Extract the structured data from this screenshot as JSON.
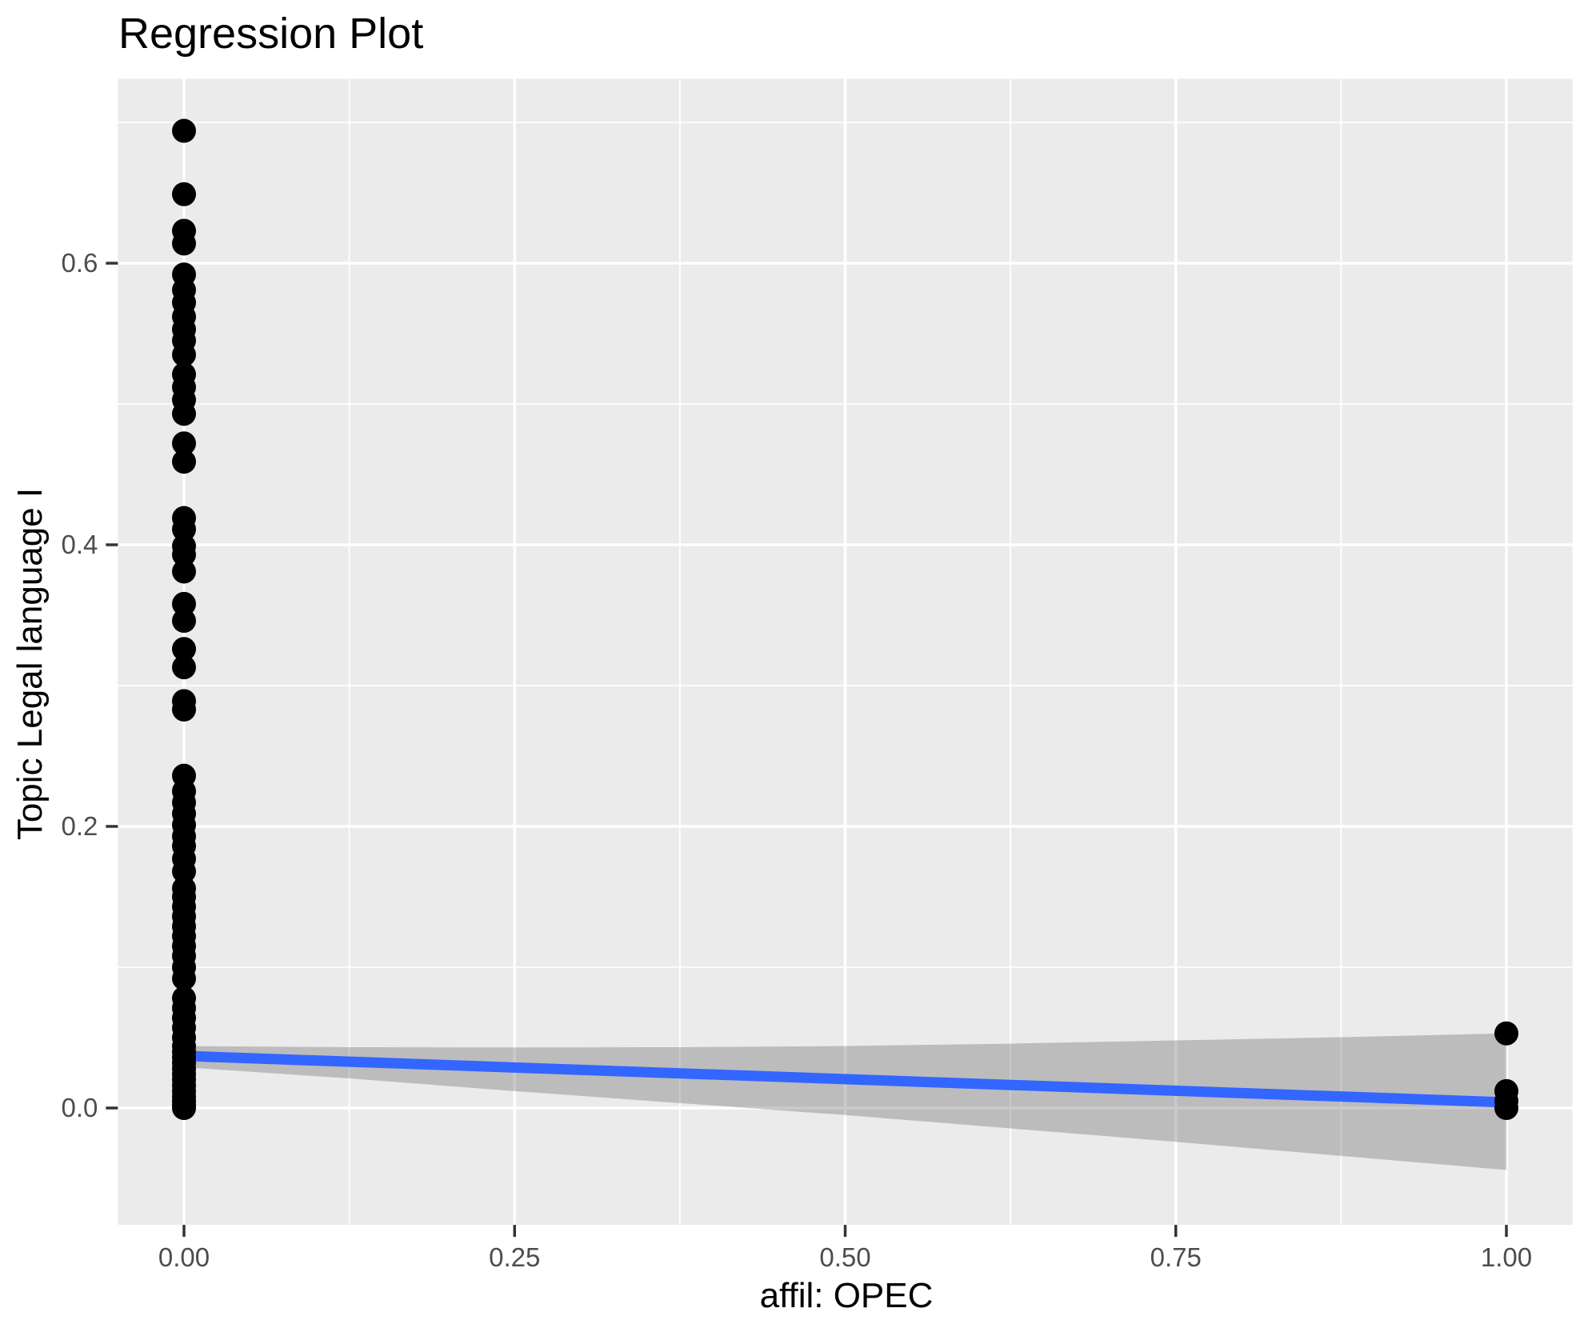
{
  "chart_data": {
    "type": "scatter",
    "title": "Regression Plot",
    "xlabel": "affil: OPEC",
    "ylabel": "Topic Legal language I",
    "legend": "none",
    "grid": "on",
    "panel_background": "#EBEBEB",
    "grid_color": "#FFFFFF",
    "point_color": "#000000",
    "line_color": "#3366FF",
    "ribbon_color": "rgba(90,90,90,0.32)",
    "tick_text_color": "#4D4D4D",
    "tick_mark_color": "#333333",
    "title_color": "#000000",
    "xlim": [
      -0.05,
      1.05
    ],
    "ylim": [
      -0.083,
      0.731
    ],
    "x_axis": {
      "title": "affil: OPEC",
      "ticks": [
        {
          "v": 0.0,
          "label": "0.00"
        },
        {
          "v": 0.25,
          "label": "0.25"
        },
        {
          "v": 0.5,
          "label": "0.50"
        },
        {
          "v": 0.75,
          "label": "0.75"
        },
        {
          "v": 1.0,
          "label": "1.00"
        }
      ],
      "minor": [
        0.125,
        0.375,
        0.625,
        0.875
      ]
    },
    "y_axis": {
      "title": "Topic Legal language I",
      "ticks": [
        {
          "v": 0.0,
          "label": "0.0"
        },
        {
          "v": 0.2,
          "label": "0.2"
        },
        {
          "v": 0.4,
          "label": "0.4"
        },
        {
          "v": 0.6,
          "label": "0.6"
        }
      ],
      "minor": [
        0.1,
        0.3,
        0.5,
        0.7
      ]
    },
    "scatter": [
      {
        "x": 0.0,
        "y_values": [
          0.694,
          0.649,
          0.623,
          0.614,
          0.592,
          0.581,
          0.572,
          0.562,
          0.553,
          0.545,
          0.535,
          0.521,
          0.512,
          0.503,
          0.493,
          0.472,
          0.459,
          0.419,
          0.411,
          0.399,
          0.393,
          0.381,
          0.358,
          0.346,
          0.326,
          0.313,
          0.289,
          0.283,
          0.236,
          0.225,
          0.217,
          0.209,
          0.201,
          0.193,
          0.186,
          0.177,
          0.168,
          0.156,
          0.15,
          0.143,
          0.136,
          0.129,
          0.122,
          0.115,
          0.108,
          0.1,
          0.092,
          0.078,
          0.071,
          0.064,
          0.057,
          0.05,
          0.044,
          0.04,
          0.036,
          0.032,
          0.028,
          0.024,
          0.02,
          0.016,
          0.012,
          0.008,
          0.005,
          0.002,
          0.0
        ]
      },
      {
        "x": 1.0,
        "y_values": [
          0.053,
          0.012,
          0.005,
          0.0
        ]
      }
    ],
    "regression_line": {
      "x_start": 0.0,
      "y_start": 0.037,
      "x_end": 1.0,
      "y_end": 0.004
    },
    "confidence_ribbon": {
      "x": [
        0.0,
        0.125,
        0.25,
        0.375,
        0.5,
        0.625,
        0.75,
        0.875,
        1.0
      ],
      "upper": [
        0.044,
        0.0432,
        0.043,
        0.0432,
        0.044,
        0.0457,
        0.048,
        0.0503,
        0.053
      ],
      "lower": [
        0.029,
        0.021,
        0.012,
        0.0035,
        -0.005,
        -0.0145,
        -0.024,
        -0.034,
        -0.044
      ]
    }
  }
}
